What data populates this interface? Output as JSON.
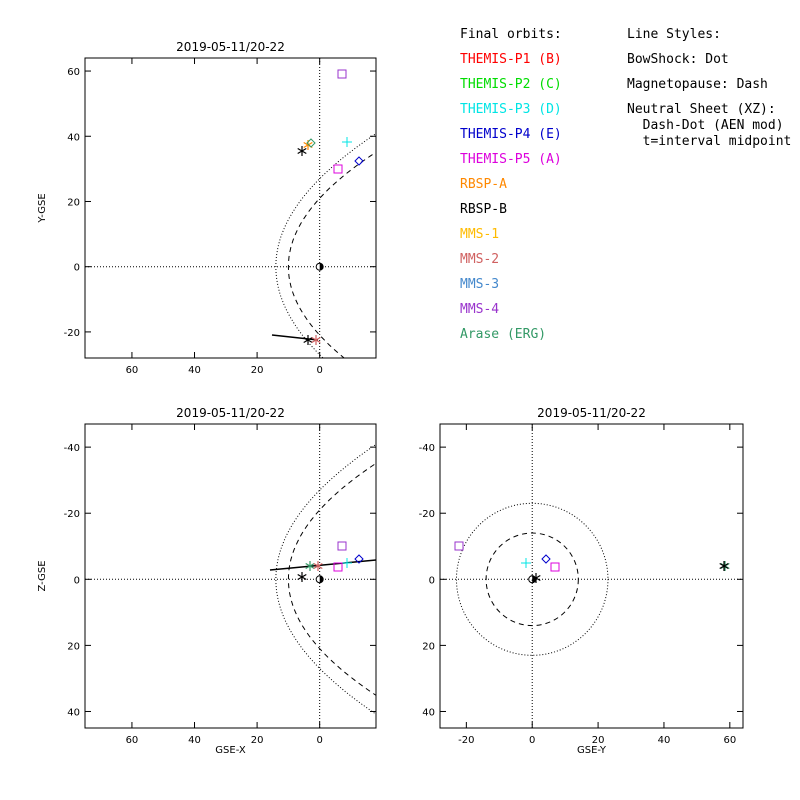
{
  "chart_data": [
    {
      "type": "scatter",
      "panel": "xy",
      "title": "2019-05-11/20-22",
      "xlabel": "",
      "ylabel": "Y-GSE",
      "xlim": [
        75,
        -18
      ],
      "ylim": [
        64,
        -28
      ],
      "xticks": [
        60,
        40,
        20,
        0
      ],
      "yticks": [
        -20,
        0,
        20,
        40,
        60
      ],
      "grid": false,
      "crosshair": true
    },
    {
      "type": "scatter",
      "panel": "xz",
      "title": "2019-05-11/20-22",
      "xlabel": "GSE-X",
      "ylabel": "Z-GSE",
      "xlim": [
        75,
        -18
      ],
      "ylim": [
        -47,
        45
      ],
      "xticks": [
        60,
        40,
        20,
        0
      ],
      "yticks": [
        -40,
        -20,
        0,
        20,
        40
      ],
      "grid": false,
      "crosshair": true
    },
    {
      "type": "scatter",
      "panel": "yz",
      "title": "2019-05-11/20-22",
      "xlabel": "GSE-Y",
      "ylabel": "",
      "xlim": [
        -28,
        64
      ],
      "ylim": [
        -47,
        45
      ],
      "xticks": [
        -20,
        0,
        20,
        40,
        60
      ],
      "yticks": [
        -40,
        -20,
        0,
        20,
        40
      ],
      "grid": false,
      "crosshair": true
    }
  ],
  "legend": {
    "orbits_title": "Final orbits:",
    "orbits": [
      {
        "label": "THEMIS-P1 (B)",
        "color": "#ff0000"
      },
      {
        "label": "THEMIS-P2 (C)",
        "color": "#00dd00"
      },
      {
        "label": "THEMIS-P3 (D)",
        "color": "#00e5e5"
      },
      {
        "label": "THEMIS-P4 (E)",
        "color": "#0000cc"
      },
      {
        "label": "THEMIS-P5 (A)",
        "color": "#dd00dd"
      },
      {
        "label": "RBSP-A",
        "color": "#ff8800"
      },
      {
        "label": "RBSP-B",
        "color": "#000000"
      },
      {
        "label": "MMS-1",
        "color": "#ffbb00"
      },
      {
        "label": "MMS-2",
        "color": "#d06060"
      },
      {
        "label": "MMS-3",
        "color": "#4488cc"
      },
      {
        "label": "MMS-4",
        "color": "#9933cc"
      },
      {
        "label": "Arase (ERG)",
        "color": "#339966"
      }
    ],
    "styles_title": "Line Styles:",
    "styles": [
      "BowShock: Dot",
      "Magnetopause: Dash",
      "Neutral Sheet (XZ):",
      "  Dash-Dot (AEN mod)",
      "  t=interval midpoint"
    ]
  }
}
